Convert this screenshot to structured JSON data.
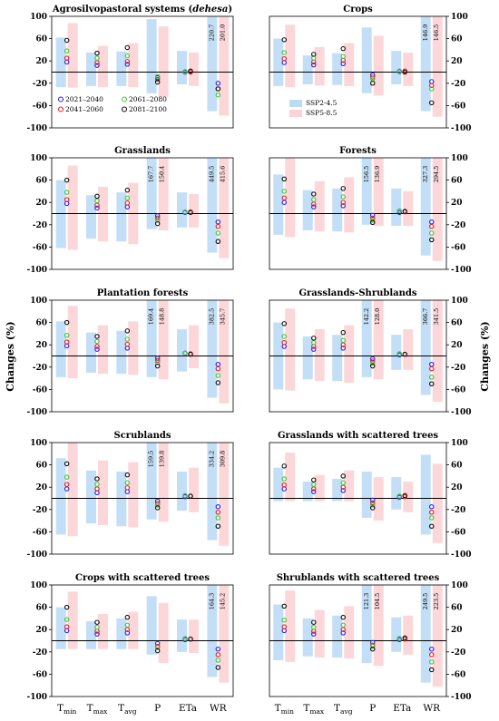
{
  "figure": {
    "y_axis_label": "Changes (%)",
    "y_ticks": [
      -100,
      -60,
      -20,
      20,
      60,
      100
    ],
    "x_categories": [
      {
        "main": "T",
        "sub": "min"
      },
      {
        "main": "T",
        "sub": "max"
      },
      {
        "main": "T",
        "sub": "avg"
      },
      {
        "main": "P",
        "sub": ""
      },
      {
        "main": "ETa",
        "sub": ""
      },
      {
        "main": "WR",
        "sub": ""
      }
    ],
    "scenario_legend": [
      {
        "name": "SSP2-4.5",
        "color": "#bcdcf6"
      },
      {
        "name": "SSP5-8.5",
        "color": "#fbd3d6"
      }
    ],
    "period_legend": [
      {
        "name": "2021–2040",
        "color": "#2b24e0"
      },
      {
        "name": "2061–2080",
        "color": "#47c43d"
      },
      {
        "name": "2041–2060",
        "color": "#e0202a"
      },
      {
        "name": "2081–2100",
        "color": "#111111"
      }
    ]
  },
  "chart_data": [
    {
      "type": "bar",
      "title": "Agrosilvopastoral systems (",
      "title_italic": "dehesa",
      "title_end": ")",
      "ylim": [
        -100,
        100
      ],
      "categories": [
        "Tmin",
        "Tmax",
        "Tavg",
        "P",
        "ETa",
        "WR"
      ],
      "series": [
        {
          "name": "SSP2-4.5",
          "ranges": [
            [
              -27,
              62
            ],
            [
              -25,
              35
            ],
            [
              -25,
              37
            ],
            [
              -38,
              95
            ],
            [
              -22,
              38
            ],
            [
              -70,
              100
            ]
          ]
        },
        {
          "name": "SSP5-8.5",
          "ranges": [
            [
              -28,
              88
            ],
            [
              -27,
              47
            ],
            [
              -27,
              52
            ],
            [
              -45,
              82
            ],
            [
              -25,
              35
            ],
            [
              -78,
              100
            ]
          ]
        }
      ],
      "period_means": {
        "2021-2040": [
          18,
          12,
          14,
          -10,
          0,
          -20
        ],
        "2041-2060": [
          25,
          17,
          19,
          -13,
          0,
          -30
        ],
        "2061-2080": [
          38,
          25,
          29,
          -8,
          1,
          -41
        ],
        "2081-2100": [
          57,
          34,
          44,
          -18,
          2,
          -30
        ]
      },
      "overflow_labels": {
        "P": [],
        "WR": [
          "220.7",
          "201.0"
        ]
      },
      "show_period_legend": true
    },
    {
      "type": "bar",
      "title": "Crops",
      "ylim": [
        -100,
        100
      ],
      "categories": [
        "Tmin",
        "Tmax",
        "Tavg",
        "P",
        "ETa",
        "WR"
      ],
      "series": [
        {
          "name": "SSP2-4.5",
          "ranges": [
            [
              -25,
              60
            ],
            [
              -22,
              30
            ],
            [
              -23,
              34
            ],
            [
              -38,
              80
            ],
            [
              -22,
              38
            ],
            [
              -70,
              100
            ]
          ]
        },
        {
          "name": "SSP5-8.5",
          "ranges": [
            [
              -27,
              85
            ],
            [
              -24,
              45
            ],
            [
              -25,
              52
            ],
            [
              -42,
              65
            ],
            [
              -25,
              35
            ],
            [
              -80,
              100
            ]
          ]
        }
      ],
      "period_means": {
        "2021-2040": [
          17,
          13,
          15,
          -5,
          1,
          -17
        ],
        "2041-2060": [
          24,
          18,
          21,
          -9,
          2,
          -24
        ],
        "2061-2080": [
          35,
          25,
          28,
          -12,
          2,
          -30
        ],
        "2081-2100": [
          58,
          32,
          42,
          -20,
          0,
          -55
        ]
      },
      "overflow_labels": {
        "P": [],
        "WR": [
          "146.9",
          "146.5"
        ]
      },
      "show_scenario_legend": true
    },
    {
      "type": "bar",
      "title": "Grasslands",
      "ylim": [
        -100,
        100
      ],
      "categories": [
        "Tmin",
        "Tmax",
        "Tavg",
        "P",
        "ETa",
        "WR"
      ],
      "series": [
        {
          "name": "SSP2-4.5",
          "ranges": [
            [
              -62,
              60
            ],
            [
              -45,
              33
            ],
            [
              -50,
              38
            ],
            [
              -28,
              100
            ],
            [
              -25,
              38
            ],
            [
              -70,
              100
            ]
          ]
        },
        {
          "name": "SSP5-8.5",
          "ranges": [
            [
              -65,
              86
            ],
            [
              -50,
              48
            ],
            [
              -55,
              55
            ],
            [
              -30,
              100
            ],
            [
              -25,
              35
            ],
            [
              -80,
              100
            ]
          ]
        }
      ],
      "period_means": {
        "2021-2040": [
          18,
          10,
          12,
          -4,
          2,
          -15
        ],
        "2041-2060": [
          25,
          15,
          19,
          -8,
          3,
          -23
        ],
        "2061-2080": [
          38,
          23,
          28,
          -12,
          3,
          -35
        ],
        "2081-2100": [
          60,
          31,
          42,
          -18,
          2,
          -50
        ]
      },
      "overflow_labels": {
        "P": [
          "167.7",
          "150.4"
        ],
        "WR": [
          "449.5",
          "415.6"
        ]
      }
    },
    {
      "type": "bar",
      "title": "Forests",
      "ylim": [
        -100,
        100
      ],
      "categories": [
        "Tmin",
        "Tmax",
        "Tavg",
        "P",
        "ETa",
        "WR"
      ],
      "series": [
        {
          "name": "SSP2-4.5",
          "ranges": [
            [
              -38,
              70
            ],
            [
              -30,
              42
            ],
            [
              -32,
              45
            ],
            [
              -20,
              100
            ],
            [
              -22,
              45
            ],
            [
              -75,
              100
            ]
          ]
        },
        {
          "name": "SSP5-8.5",
          "ranges": [
            [
              -42,
              100
            ],
            [
              -32,
              58
            ],
            [
              -34,
              65
            ],
            [
              -22,
              100
            ],
            [
              -22,
              40
            ],
            [
              -85,
              100
            ]
          ]
        }
      ],
      "period_means": {
        "2021-2040": [
          20,
          12,
          14,
          -3,
          2,
          -15
        ],
        "2041-2060": [
          28,
          17,
          20,
          -8,
          3,
          -23
        ],
        "2061-2080": [
          40,
          25,
          30,
          -12,
          5,
          -35
        ],
        "2081-2100": [
          62,
          35,
          45,
          -16,
          4,
          -47
        ]
      },
      "overflow_labels": {
        "P": [
          "156.5",
          "136.9"
        ],
        "WR": [
          "327.3",
          "294.5"
        ]
      }
    },
    {
      "type": "bar",
      "title": "Plantation forests",
      "ylim": [
        -100,
        100
      ],
      "categories": [
        "Tmin",
        "Tmax",
        "Tavg",
        "P",
        "ETa",
        "WR"
      ],
      "series": [
        {
          "name": "SSP2-4.5",
          "ranges": [
            [
              -38,
              62
            ],
            [
              -30,
              42
            ],
            [
              -32,
              45
            ],
            [
              -38,
              100
            ],
            [
              -28,
              48
            ],
            [
              -75,
              100
            ]
          ]
        },
        {
          "name": "SSP5-8.5",
          "ranges": [
            [
              -40,
              90
            ],
            [
              -32,
              55
            ],
            [
              -34,
              62
            ],
            [
              -42,
              100
            ],
            [
              -22,
              55
            ],
            [
              -85,
              100
            ]
          ]
        }
      ],
      "period_means": {
        "2021-2040": [
          18,
          12,
          14,
          -4,
          5,
          -15
        ],
        "2041-2060": [
          25,
          17,
          21,
          -8,
          4,
          -23
        ],
        "2061-2080": [
          37,
          26,
          30,
          -12,
          5,
          -35
        ],
        "2081-2100": [
          60,
          35,
          45,
          -18,
          3,
          -48
        ]
      },
      "overflow_labels": {
        "P": [
          "169.4",
          "148.8"
        ],
        "WR": [
          "382.5",
          "345.7"
        ]
      }
    },
    {
      "type": "bar",
      "title": "Grasslands-Shrublands",
      "ylim": [
        -100,
        100
      ],
      "categories": [
        "Tmin",
        "Tmax",
        "Tavg",
        "P",
        "ETa",
        "WR"
      ],
      "series": [
        {
          "name": "SSP2-4.5",
          "ranges": [
            [
              -60,
              60
            ],
            [
              -42,
              35
            ],
            [
              -45,
              38
            ],
            [
              -38,
              100
            ],
            [
              -25,
              38
            ],
            [
              -70,
              100
            ]
          ]
        },
        {
          "name": "SSP5-8.5",
          "ranges": [
            [
              -62,
              85
            ],
            [
              -45,
              48
            ],
            [
              -48,
              55
            ],
            [
              -42,
              100
            ],
            [
              -25,
              48
            ],
            [
              -82,
              100
            ]
          ]
        }
      ],
      "period_means": {
        "2021-2040": [
          17,
          12,
          14,
          -5,
          2,
          -15
        ],
        "2041-2060": [
          24,
          17,
          20,
          -9,
          3,
          -23
        ],
        "2061-2080": [
          35,
          24,
          28,
          -13,
          4,
          -38
        ],
        "2081-2100": [
          58,
          32,
          42,
          -18,
          3,
          -50
        ]
      },
      "overflow_labels": {
        "P": [
          "142.2",
          "128.0"
        ],
        "WR": [
          "366.7",
          "341.5"
        ]
      }
    },
    {
      "type": "bar",
      "title": "Scrublands",
      "ylim": [
        -100,
        100
      ],
      "categories": [
        "Tmin",
        "Tmax",
        "Tavg",
        "P",
        "ETa",
        "WR"
      ],
      "series": [
        {
          "name": "SSP2-4.5",
          "ranges": [
            [
              -65,
              72
            ],
            [
              -45,
              50
            ],
            [
              -50,
              48
            ],
            [
              -38,
              100
            ],
            [
              -22,
              48
            ],
            [
              -75,
              100
            ]
          ]
        },
        {
          "name": "SSP5-8.5",
          "ranges": [
            [
              -68,
              100
            ],
            [
              -48,
              68
            ],
            [
              -52,
              65
            ],
            [
              -42,
              100
            ],
            [
              -25,
              55
            ],
            [
              -85,
              100
            ]
          ]
        }
      ],
      "period_means": {
        "2021-2040": [
          17,
          10,
          12,
          -5,
          3,
          -15
        ],
        "2041-2060": [
          25,
          17,
          19,
          -9,
          4,
          -25
        ],
        "2061-2080": [
          38,
          25,
          28,
          -12,
          5,
          -35
        ],
        "2081-2100": [
          62,
          35,
          42,
          -17,
          4,
          -50
        ]
      },
      "overflow_labels": {
        "P": [
          "159.5",
          "139.8"
        ],
        "WR": [
          "334.2",
          "309.8"
        ]
      }
    },
    {
      "type": "bar",
      "title": "Grasslands with scattered trees",
      "ylim": [
        -100,
        100
      ],
      "categories": [
        "Tmin",
        "Tmax",
        "Tavg",
        "P",
        "ETa",
        "WR"
      ],
      "series": [
        {
          "name": "SSP2-4.5",
          "ranges": [
            [
              -5,
              55
            ],
            [
              -5,
              30
            ],
            [
              -5,
              35
            ],
            [
              -35,
              48
            ],
            [
              -20,
              38
            ],
            [
              -65,
              78
            ]
          ]
        },
        {
          "name": "SSP5-8.5",
          "ranges": [
            [
              -5,
              82
            ],
            [
              -5,
              42
            ],
            [
              -5,
              50
            ],
            [
              -40,
              38
            ],
            [
              -25,
              30
            ],
            [
              -80,
              62
            ]
          ]
        }
      ],
      "period_means": {
        "2021-2040": [
          17,
          12,
          14,
          -3,
          2,
          -15
        ],
        "2041-2060": [
          24,
          17,
          20,
          -8,
          3,
          -25
        ],
        "2061-2080": [
          35,
          25,
          28,
          -12,
          4,
          -35
        ],
        "2081-2100": [
          58,
          33,
          40,
          -17,
          5,
          -50
        ]
      },
      "overflow_labels": {
        "P": [],
        "WR": []
      }
    },
    {
      "type": "bar",
      "title": "Crops with scattered trees",
      "ylim": [
        -100,
        100
      ],
      "categories": [
        "Tmin",
        "Tmax",
        "Tavg",
        "P",
        "ETa",
        "WR"
      ],
      "series": [
        {
          "name": "SSP2-4.5",
          "ranges": [
            [
              -15,
              60
            ],
            [
              -15,
              35
            ],
            [
              -15,
              40
            ],
            [
              -25,
              80
            ],
            [
              -20,
              38
            ],
            [
              -65,
              100
            ]
          ]
        },
        {
          "name": "SSP5-8.5",
          "ranges": [
            [
              -15,
              88
            ],
            [
              -15,
              48
            ],
            [
              -15,
              52
            ],
            [
              -40,
              68
            ],
            [
              -22,
              38
            ],
            [
              -75,
              100
            ]
          ]
        }
      ],
      "period_means": {
        "2021-2040": [
          18,
          12,
          14,
          -5,
          2,
          -15
        ],
        "2041-2060": [
          25,
          17,
          20,
          -10,
          3,
          -25
        ],
        "2061-2080": [
          38,
          24,
          28,
          -12,
          4,
          -35
        ],
        "2081-2100": [
          60,
          33,
          42,
          -18,
          3,
          -48
        ]
      },
      "overflow_labels": {
        "P": [],
        "WR": [
          "164.3",
          "145.2"
        ]
      }
    },
    {
      "type": "bar",
      "title": "Shrublands with scattered trees",
      "ylim": [
        -100,
        100
      ],
      "categories": [
        "Tmin",
        "Tmax",
        "Tavg",
        "P",
        "ETa",
        "WR"
      ],
      "series": [
        {
          "name": "SSP2-4.5",
          "ranges": [
            [
              -35,
              65
            ],
            [
              -28,
              40
            ],
            [
              -30,
              45
            ],
            [
              -40,
              100
            ],
            [
              -20,
              42
            ],
            [
              -75,
              100
            ]
          ]
        },
        {
          "name": "SSP5-8.5",
          "ranges": [
            [
              -38,
              90
            ],
            [
              -30,
              55
            ],
            [
              -32,
              62
            ],
            [
              -45,
              100
            ],
            [
              -25,
              45
            ],
            [
              -82,
              100
            ]
          ]
        }
      ],
      "period_means": {
        "2021-2040": [
          18,
          12,
          14,
          -3,
          2,
          -15
        ],
        "2041-2060": [
          25,
          17,
          20,
          -8,
          3,
          -25
        ],
        "2061-2080": [
          37,
          24,
          28,
          -10,
          4,
          -38
        ],
        "2081-2100": [
          62,
          33,
          42,
          -15,
          5,
          -52
        ]
      },
      "overflow_labels": {
        "P": [
          "121.3",
          "104.5"
        ],
        "WR": [
          "249.5",
          "223.5"
        ]
      }
    }
  ]
}
